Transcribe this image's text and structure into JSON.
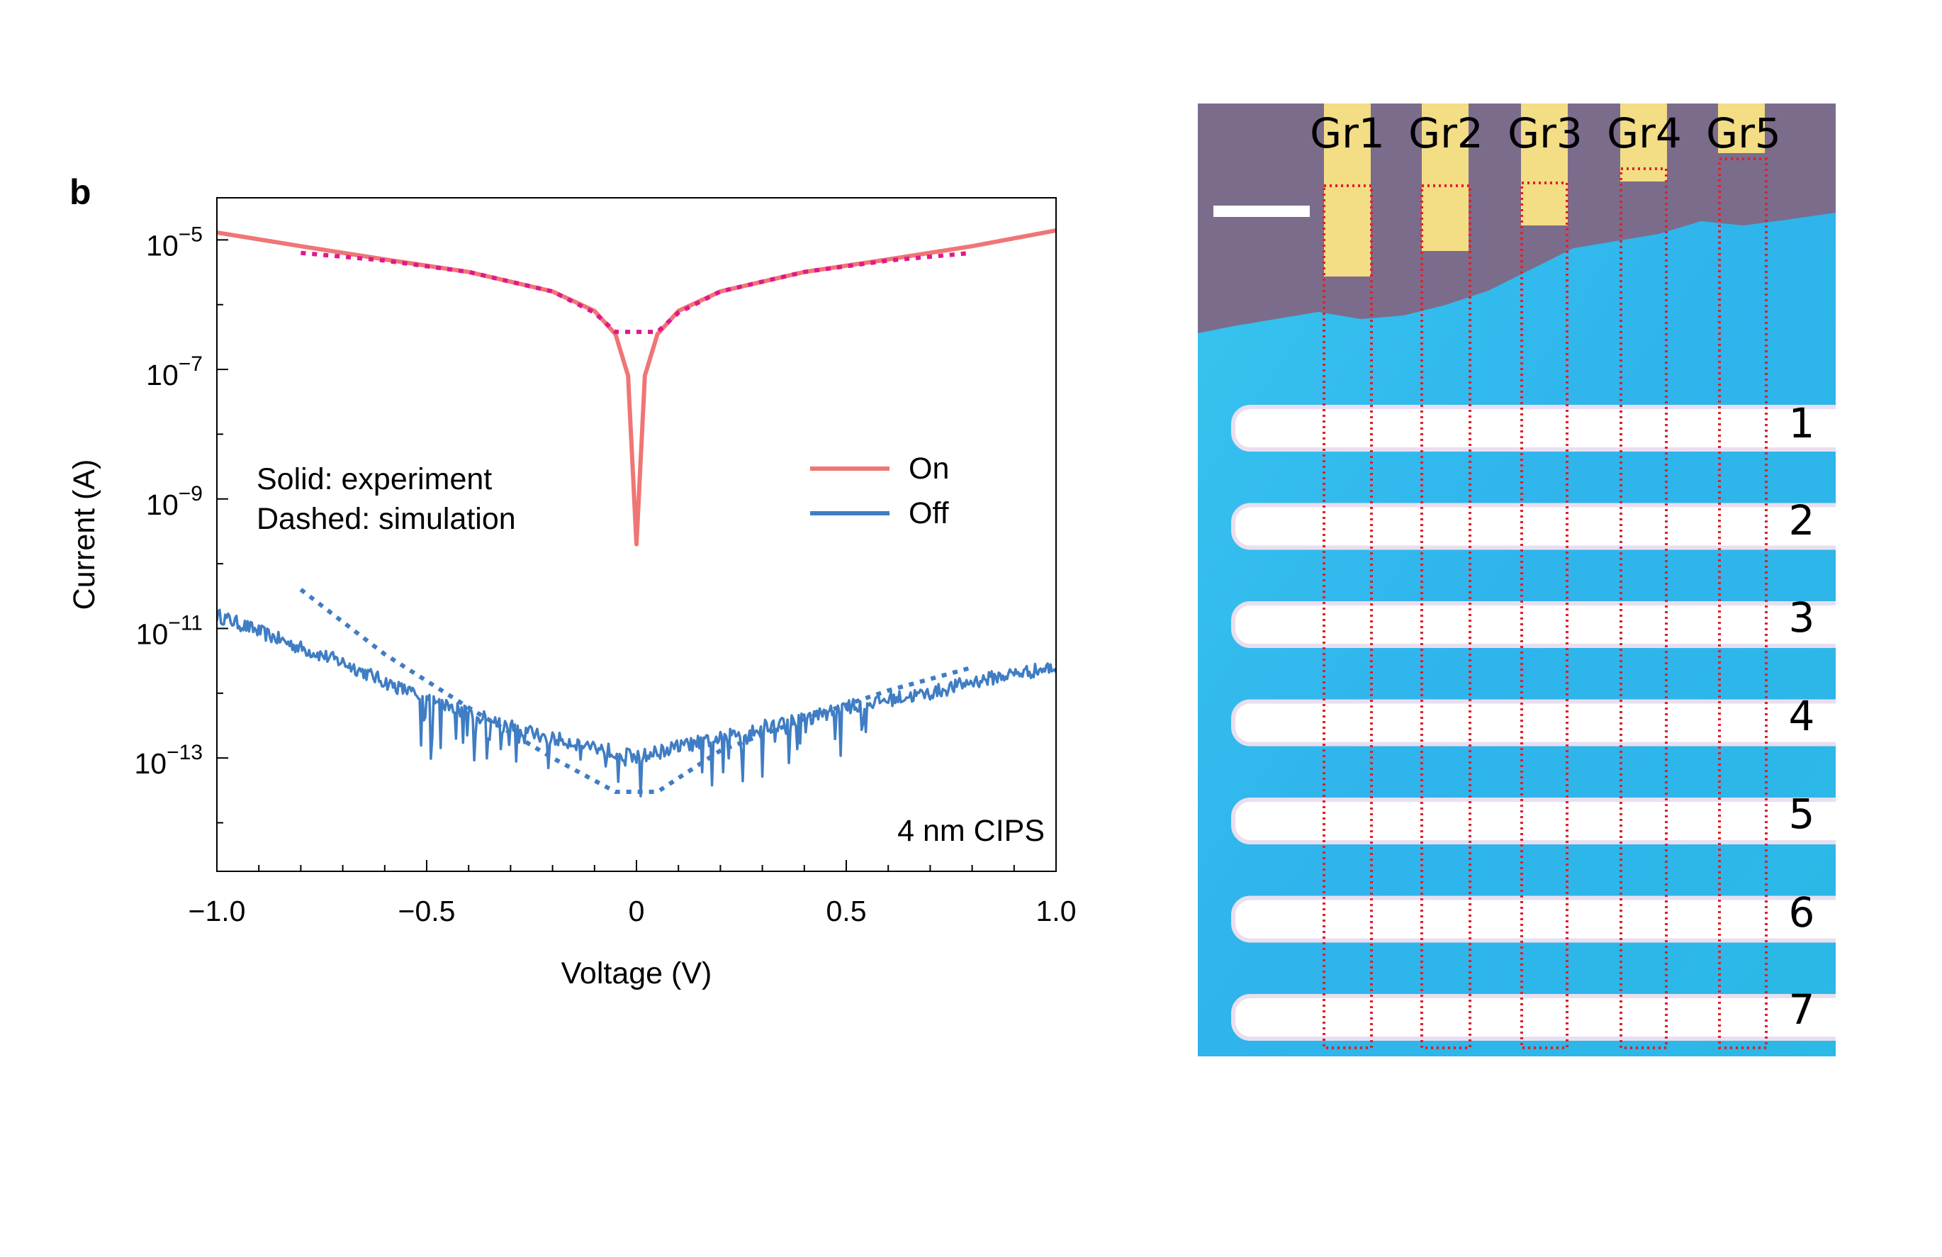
{
  "panel_label": "b",
  "chart_data": {
    "type": "line",
    "title": "",
    "xlabel": "Voltage (V)",
    "ylabel": "Current (A)",
    "xlim": [
      -1.0,
      1.0
    ],
    "ylim_log10": [
      -14.75,
      -4.35
    ],
    "yscale": "log",
    "x_ticks": [
      -1.0,
      -0.5,
      0,
      0.5,
      1.0
    ],
    "x_tick_labels": [
      "−1.0",
      "−0.5",
      "0",
      "0.5",
      "1.0"
    ],
    "y_ticks_log10": [
      -5,
      -7,
      -9,
      -11,
      -13
    ],
    "y_tick_labels": [
      "10−5",
      "10−7",
      "10−9",
      "10−11",
      "10−13"
    ],
    "grid": false,
    "legend": {
      "placement": "upper-right",
      "entries": [
        {
          "label": "On",
          "color": "#f07575"
        },
        {
          "label": "Off",
          "color": "#3f7dc4"
        }
      ]
    },
    "annotations": [
      "Solid: experiment",
      "Dashed: simulation",
      "4 nm CIPS"
    ],
    "series": [
      {
        "name": "On",
        "style": "solid",
        "color": "#f07575",
        "x": [
          -1.0,
          -0.8,
          -0.6,
          -0.4,
          -0.2,
          -0.1,
          -0.05,
          -0.02,
          0.0,
          0.02,
          0.05,
          0.1,
          0.2,
          0.4,
          0.6,
          0.8,
          1.0
        ],
        "y": [
          1.3e-05,
          8e-06,
          5e-06,
          3.2e-06,
          1.6e-06,
          8e-07,
          3.5e-07,
          8e-08,
          2e-10,
          8e-08,
          3.5e-07,
          8e-07,
          1.6e-06,
          3.2e-06,
          5e-06,
          8e-06,
          1.4e-05
        ]
      },
      {
        "name": "On",
        "style": "dashed",
        "color": "#e0188c",
        "x": [
          -0.8,
          -0.6,
          -0.4,
          -0.2,
          -0.1,
          -0.05,
          0.05,
          0.1,
          0.2,
          0.4,
          0.6,
          0.8
        ],
        "y": [
          6.3e-06,
          4.8e-06,
          3.2e-06,
          1.6e-06,
          7.5e-07,
          3.8e-07,
          3.8e-07,
          7.5e-07,
          1.6e-06,
          3.2e-06,
          4.8e-06,
          6.3e-06
        ]
      },
      {
        "name": "Off",
        "style": "solid",
        "color": "#3f7dc4",
        "x": [
          -1.0,
          -0.9,
          -0.8,
          -0.7,
          -0.6,
          -0.5,
          -0.4,
          -0.3,
          -0.2,
          -0.1,
          0.0,
          0.1,
          0.2,
          0.3,
          0.4,
          0.5,
          0.6,
          0.7,
          0.8,
          0.9,
          1.0
        ],
        "y": [
          1.6e-11,
          9e-12,
          5e-12,
          3e-12,
          1.5e-12,
          8e-13,
          5e-13,
          3e-13,
          2e-13,
          1.5e-13,
          1e-13,
          1.5e-13,
          2e-13,
          3e-13,
          4e-13,
          6e-13,
          8e-13,
          1e-12,
          1.5e-12,
          2e-12,
          2.5e-12
        ]
      },
      {
        "name": "Off",
        "style": "dashed",
        "color": "#3f7dc4",
        "x": [
          -0.8,
          -0.6,
          -0.4,
          -0.2,
          -0.05,
          0.05,
          0.2,
          0.4,
          0.6,
          0.8
        ],
        "y": [
          4e-11,
          4e-12,
          6e-13,
          1e-13,
          3e-14,
          3e-14,
          1.3e-13,
          4e-13,
          1.1e-12,
          2.5e-12
        ]
      }
    ]
  },
  "photo": {
    "electrodes_top": [
      "Gr1",
      "Gr2",
      "Gr3",
      "Gr4",
      "Gr5"
    ],
    "electrodes_right": [
      "1",
      "2",
      "3",
      "4",
      "5",
      "6",
      "7"
    ]
  }
}
